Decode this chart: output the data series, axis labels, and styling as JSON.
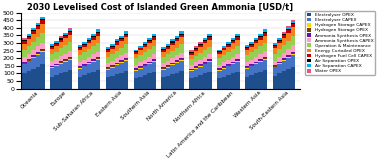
{
  "title": "2030 Levelised Cost of Islanded Green Ammonia [USD/t]",
  "regions": [
    "Oceania",
    "Europe",
    "Sub-Saharan Africa",
    "Eastern Asia",
    "Southern Asia",
    "North America",
    "Northern Africa",
    "Latin America and the Caribbean",
    "Western Asia",
    "South-Eastern Asia"
  ],
  "components": [
    "Electrolyser OPEX",
    "Electrolyser CAPEX",
    "Hydrogen Storage CAPEX",
    "Hydrogen Storage OPEX",
    "Ammonia Synthesis OPEX",
    "Ammonia Synthesis CAPEX",
    "Operation & Maintenance",
    "Energy Curtailed OPEX",
    "Hydrogen Fuel Cell CAPEX",
    "Air Separation OPEX",
    "Air Separation CAPEX",
    "Water OPEX"
  ],
  "colors": [
    "#1f4e8c",
    "#4472c4",
    "#ffd700",
    "#7b3f00",
    "#6a0dad",
    "#ff9dc6",
    "#92d050",
    "#f4801e",
    "#c00000",
    "#000000",
    "#00b0f0",
    "#e75480"
  ],
  "ylim": [
    0,
    500
  ],
  "yticks": [
    0,
    50,
    100,
    150,
    200,
    250,
    300,
    350,
    400,
    450,
    500
  ],
  "bars_per_region": 5,
  "bar_data": {
    "Oceania": [
      [
        100,
        60,
        5,
        3,
        8,
        30,
        50,
        40,
        15,
        6,
        10,
        3
      ],
      [
        115,
        65,
        5,
        3,
        8,
        32,
        52,
        45,
        15,
        6,
        10,
        3
      ],
      [
        130,
        70,
        6,
        4,
        9,
        35,
        55,
        50,
        18,
        7,
        12,
        4
      ],
      [
        145,
        75,
        7,
        4,
        9,
        38,
        60,
        55,
        18,
        7,
        12,
        4
      ],
      [
        160,
        80,
        8,
        5,
        10,
        40,
        65,
        60,
        20,
        8,
        13,
        5
      ]
    ],
    "Europe": [
      [
        80,
        55,
        5,
        3,
        8,
        28,
        48,
        35,
        14,
        6,
        10,
        3
      ],
      [
        90,
        58,
        5,
        3,
        8,
        30,
        50,
        38,
        14,
        6,
        10,
        3
      ],
      [
        100,
        62,
        6,
        4,
        9,
        32,
        52,
        42,
        16,
        7,
        11,
        3
      ],
      [
        110,
        66,
        6,
        4,
        9,
        34,
        55,
        46,
        16,
        7,
        11,
        3
      ],
      [
        120,
        70,
        7,
        4,
        10,
        36,
        58,
        50,
        18,
        7,
        12,
        4
      ]
    ],
    "Sub-Saharan Africa": [
      [
        80,
        52,
        5,
        3,
        8,
        27,
        46,
        33,
        14,
        6,
        10,
        3
      ],
      [
        90,
        56,
        5,
        3,
        8,
        29,
        48,
        36,
        14,
        6,
        10,
        3
      ],
      [
        100,
        60,
        6,
        3,
        9,
        31,
        50,
        40,
        16,
        7,
        11,
        3
      ],
      [
        110,
        64,
        6,
        4,
        9,
        33,
        53,
        44,
        16,
        7,
        11,
        3
      ],
      [
        120,
        68,
        7,
        4,
        10,
        35,
        56,
        48,
        18,
        7,
        12,
        4
      ]
    ],
    "Eastern Asia": [
      [
        75,
        50,
        5,
        3,
        8,
        26,
        44,
        30,
        13,
        6,
        10,
        3
      ],
      [
        85,
        54,
        5,
        3,
        8,
        28,
        46,
        34,
        14,
        6,
        10,
        3
      ],
      [
        95,
        58,
        6,
        3,
        9,
        30,
        49,
        38,
        16,
        7,
        11,
        3
      ],
      [
        105,
        62,
        6,
        4,
        9,
        32,
        52,
        42,
        16,
        7,
        11,
        3
      ],
      [
        115,
        66,
        7,
        4,
        10,
        34,
        55,
        46,
        18,
        7,
        12,
        4
      ]
    ],
    "Southern Asia": [
      [
        70,
        48,
        5,
        3,
        7,
        25,
        42,
        28,
        12,
        5,
        9,
        3
      ],
      [
        80,
        52,
        5,
        3,
        8,
        27,
        44,
        32,
        13,
        6,
        10,
        3
      ],
      [
        90,
        56,
        5,
        3,
        8,
        29,
        47,
        36,
        15,
        6,
        10,
        3
      ],
      [
        100,
        60,
        6,
        3,
        9,
        31,
        50,
        40,
        16,
        7,
        11,
        3
      ],
      [
        110,
        64,
        6,
        4,
        9,
        33,
        53,
        44,
        17,
        7,
        11,
        3
      ]
    ],
    "North America": [
      [
        75,
        50,
        5,
        3,
        8,
        26,
        44,
        30,
        13,
        6,
        10,
        3
      ],
      [
        85,
        54,
        5,
        3,
        8,
        28,
        46,
        34,
        14,
        6,
        10,
        3
      ],
      [
        95,
        58,
        6,
        3,
        9,
        30,
        49,
        38,
        15,
        7,
        11,
        3
      ],
      [
        105,
        62,
        6,
        4,
        9,
        32,
        52,
        42,
        16,
        7,
        11,
        3
      ],
      [
        115,
        66,
        7,
        4,
        10,
        34,
        55,
        46,
        17,
        7,
        12,
        4
      ]
    ],
    "Northern Africa": [
      [
        70,
        47,
        5,
        3,
        7,
        24,
        40,
        27,
        12,
        5,
        9,
        3
      ],
      [
        80,
        51,
        5,
        3,
        8,
        27,
        43,
        31,
        13,
        6,
        10,
        3
      ],
      [
        90,
        55,
        5,
        3,
        8,
        29,
        46,
        36,
        15,
        6,
        10,
        3
      ],
      [
        100,
        59,
        6,
        3,
        9,
        31,
        49,
        41,
        16,
        7,
        11,
        3
      ],
      [
        110,
        63,
        6,
        4,
        9,
        33,
        52,
        46,
        17,
        7,
        11,
        3
      ]
    ],
    "Latin America and the Caribbean": [
      [
        70,
        48,
        5,
        3,
        7,
        25,
        42,
        28,
        12,
        5,
        9,
        3
      ],
      [
        80,
        52,
        5,
        3,
        8,
        27,
        44,
        32,
        13,
        6,
        10,
        3
      ],
      [
        90,
        56,
        5,
        3,
        8,
        29,
        47,
        36,
        15,
        6,
        10,
        3
      ],
      [
        100,
        60,
        6,
        3,
        9,
        31,
        50,
        40,
        16,
        7,
        11,
        3
      ],
      [
        110,
        64,
        6,
        4,
        9,
        33,
        53,
        44,
        17,
        7,
        11,
        3
      ]
    ],
    "Western Asia": [
      [
        80,
        52,
        5,
        3,
        8,
        27,
        45,
        32,
        13,
        6,
        10,
        3
      ],
      [
        90,
        56,
        5,
        3,
        8,
        29,
        47,
        36,
        14,
        6,
        10,
        3
      ],
      [
        100,
        60,
        6,
        3,
        9,
        31,
        50,
        40,
        15,
        7,
        11,
        3
      ],
      [
        110,
        64,
        6,
        4,
        9,
        33,
        53,
        44,
        16,
        7,
        11,
        3
      ],
      [
        120,
        68,
        7,
        4,
        10,
        36,
        56,
        48,
        18,
        7,
        12,
        4
      ]
    ],
    "South-Eastern Asia": [
      [
        85,
        55,
        5,
        3,
        8,
        28,
        47,
        34,
        14,
        6,
        10,
        3
      ],
      [
        100,
        60,
        6,
        3,
        9,
        31,
        50,
        40,
        16,
        7,
        11,
        3
      ],
      [
        115,
        65,
        6,
        4,
        9,
        34,
        54,
        46,
        17,
        7,
        12,
        4
      ],
      [
        130,
        70,
        7,
        4,
        10,
        37,
        58,
        52,
        18,
        8,
        13,
        4
      ],
      [
        145,
        75,
        8,
        5,
        11,
        40,
        62,
        58,
        20,
        8,
        13,
        5
      ]
    ]
  }
}
